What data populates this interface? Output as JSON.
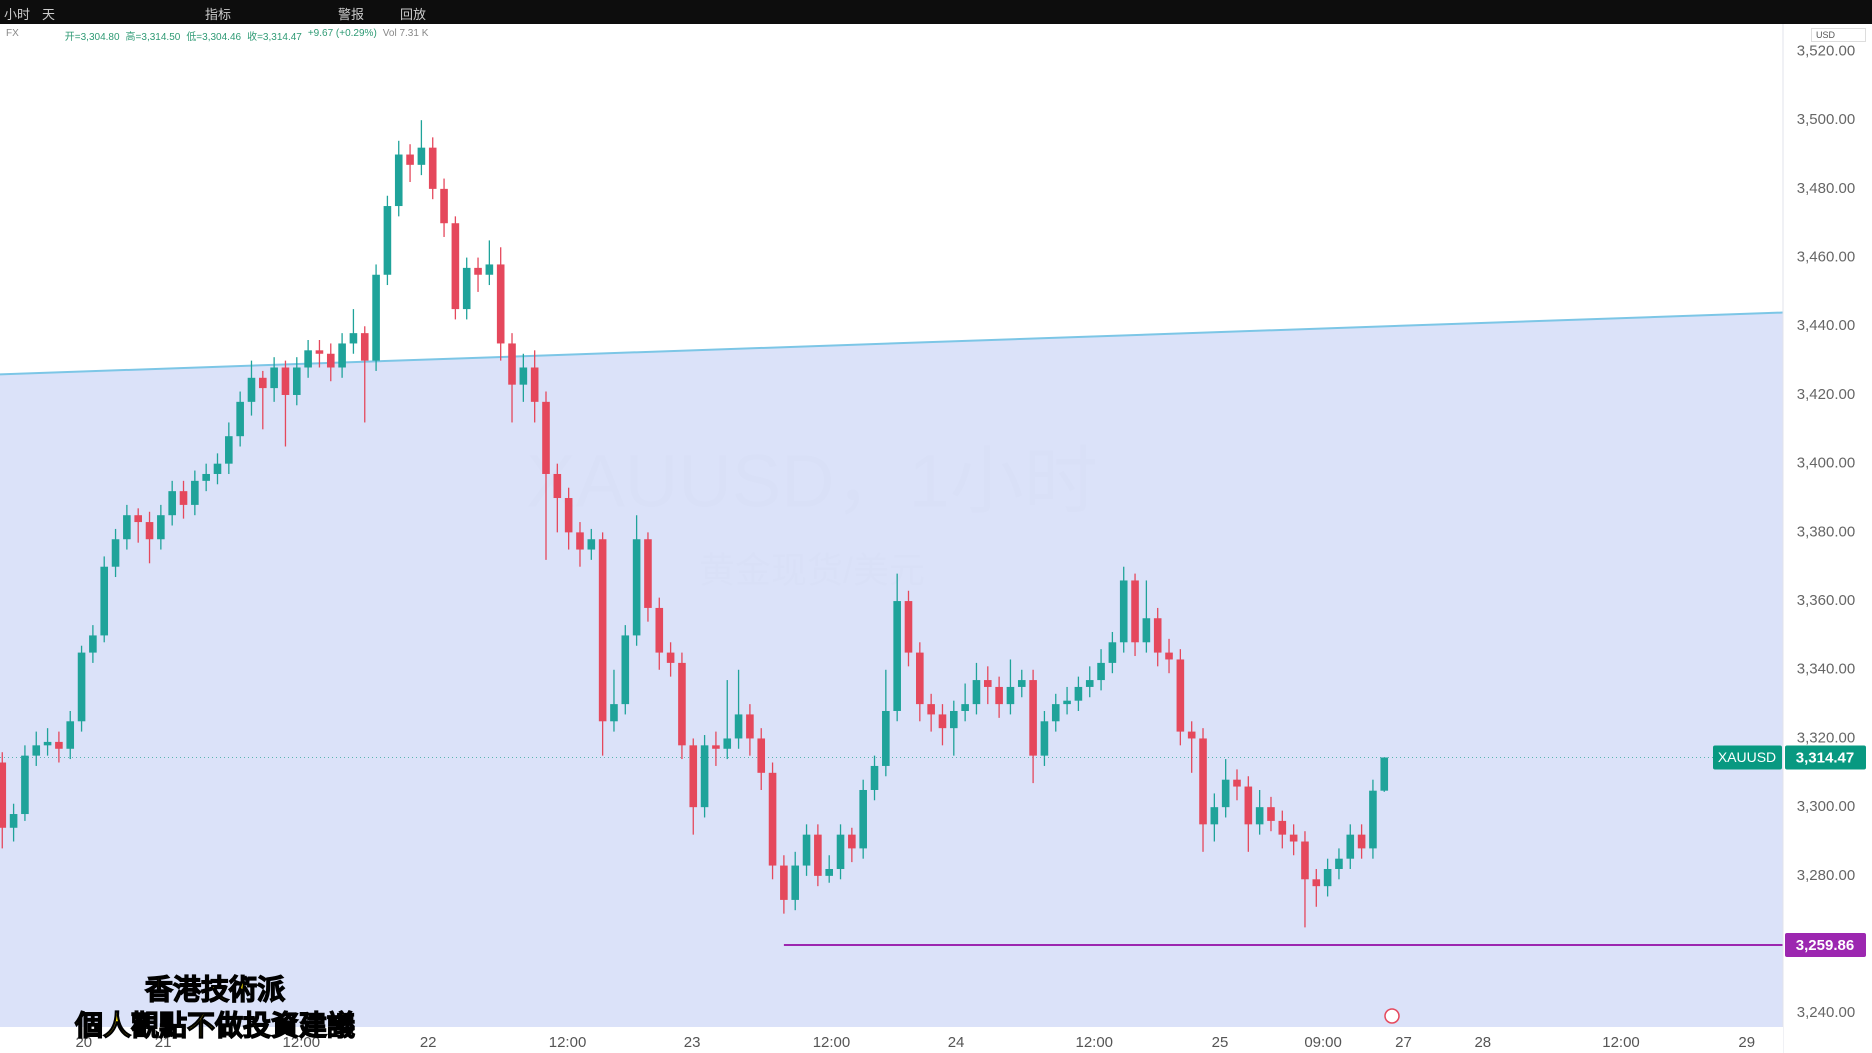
{
  "toolbar": {
    "items": [
      "小时",
      "天",
      "指标",
      "警报",
      "回放"
    ]
  },
  "legend": {
    "symbol": "FX",
    "open": "开=3,304.80",
    "high": "高=3,314.50",
    "low": "低=3,304.46",
    "close": "收=3,314.47",
    "change": "+9.67 (+0.29%)",
    "volume": "Vol 7.31 K"
  },
  "currency": "USD",
  "overlay": {
    "line1": "香港技術派",
    "line2": "個人觀點不做投資建議"
  },
  "chart_data": {
    "type": "candlestick",
    "title": "XAUUSD，1小时",
    "subtitle": "黄金现货/美元",
    "up_color": "#1fa39a",
    "down_color": "#e5485c",
    "x": [
      0,
      1,
      2,
      3,
      4,
      5,
      6,
      7,
      8,
      9,
      10,
      11,
      12,
      13,
      14,
      15,
      16,
      17,
      18,
      19,
      20,
      21,
      22,
      23,
      24,
      25,
      26,
      27,
      28,
      29,
      30,
      31,
      32,
      33,
      34,
      35,
      36,
      37,
      38,
      39,
      40,
      41,
      42,
      43,
      44,
      45,
      46,
      47,
      48,
      49,
      50,
      51,
      52,
      53,
      54,
      55,
      56,
      57,
      58,
      59,
      60,
      61,
      62,
      63,
      64,
      65,
      66,
      67,
      68,
      69,
      70,
      71,
      72,
      73,
      74,
      75,
      76,
      77,
      78,
      79,
      80,
      81,
      82,
      83,
      84,
      85,
      86,
      87,
      88,
      89,
      90,
      91,
      92,
      93,
      94,
      95,
      96,
      97,
      98,
      99,
      100,
      101,
      102,
      103,
      104,
      105,
      106,
      107,
      108,
      109,
      110,
      111,
      112,
      113,
      114,
      115,
      116,
      117,
      118,
      119,
      120,
      121,
      122
    ],
    "open": [
      3313,
      3294,
      3298,
      3315,
      3318,
      3319,
      3317,
      3325,
      3345,
      3350,
      3370,
      3378,
      3385,
      3383,
      3378,
      3385,
      3392,
      3388,
      3395,
      3397,
      3400,
      3408,
      3418,
      3425,
      3422,
      3428,
      3420,
      3428,
      3433,
      3432,
      3428,
      3435,
      3438,
      3430,
      3455,
      3475,
      3490,
      3487,
      3492,
      3480,
      3470,
      3445,
      3457,
      3455,
      3458,
      3435,
      3423,
      3428,
      3418,
      3397,
      3390,
      3380,
      3375,
      3378,
      3325,
      3330,
      3350,
      3378,
      3358,
      3345,
      3342,
      3318,
      3300,
      3318,
      3317,
      3320,
      3327,
      3320,
      3310,
      3283,
      3273,
      3283,
      3292,
      3280,
      3282,
      3292,
      3288,
      3305,
      3312,
      3328,
      3360,
      3345,
      3330,
      3327,
      3323,
      3328,
      3330,
      3337,
      3335,
      3330,
      3335,
      3337,
      3315,
      3325,
      3330,
      3331,
      3335,
      3337,
      3342,
      3348,
      3366,
      3348,
      3355,
      3345,
      3343,
      3322,
      3320,
      3295,
      3300,
      3308,
      3306,
      3295,
      3300,
      3296,
      3292,
      3290,
      3279,
      3277,
      3282,
      3285,
      3292,
      3288,
      3304.8
    ],
    "high": [
      3316,
      3301,
      3318,
      3322,
      3323,
      3322,
      3328,
      3347,
      3353,
      3373,
      3381,
      3388,
      3387,
      3386,
      3388,
      3395,
      3395,
      3398,
      3400,
      3403,
      3412,
      3421,
      3430,
      3427,
      3431,
      3430,
      3431,
      3436,
      3436,
      3435,
      3438,
      3445,
      3440,
      3458,
      3478,
      3494,
      3493,
      3500,
      3495,
      3483,
      3472,
      3460,
      3460,
      3465,
      3463,
      3438,
      3432,
      3433,
      3421,
      3400,
      3393,
      3383,
      3381,
      3380,
      3340,
      3353,
      3385,
      3380,
      3361,
      3348,
      3345,
      3320,
      3321,
      3322,
      3337,
      3340,
      3330,
      3323,
      3313,
      3286,
      3287,
      3295,
      3295,
      3286,
      3295,
      3294,
      3308,
      3315,
      3340,
      3368,
      3363,
      3348,
      3333,
      3330,
      3331,
      3336,
      3342,
      3341,
      3338,
      3343,
      3340,
      3340,
      3328,
      3333,
      3335,
      3338,
      3341,
      3346,
      3351,
      3370,
      3368,
      3366,
      3358,
      3349,
      3346,
      3325,
      3323,
      3304,
      3314,
      3311,
      3309,
      3305,
      3303,
      3299,
      3295,
      3293,
      3282,
      3285,
      3288,
      3295,
      3295,
      3308,
      3314.5
    ],
    "low": [
      3288,
      3290,
      3296,
      3312,
      3315,
      3313,
      3314,
      3322,
      3342,
      3348,
      3367,
      3375,
      3377,
      3371,
      3375,
      3382,
      3384,
      3385,
      3392,
      3394,
      3397,
      3405,
      3414,
      3410,
      3418,
      3405,
      3417,
      3425,
      3428,
      3424,
      3425,
      3432,
      3412,
      3427,
      3452,
      3472,
      3482,
      3484,
      3477,
      3466,
      3442,
      3442,
      3450,
      3452,
      3430,
      3412,
      3418,
      3412,
      3372,
      3380,
      3375,
      3370,
      3372,
      3315,
      3322,
      3327,
      3347,
      3354,
      3340,
      3338,
      3314,
      3292,
      3297,
      3312,
      3314,
      3317,
      3315,
      3305,
      3279,
      3269,
      3270,
      3280,
      3277,
      3278,
      3279,
      3284,
      3285,
      3302,
      3309,
      3325,
      3341,
      3325,
      3322,
      3318,
      3315,
      3325,
      3327,
      3330,
      3326,
      3327,
      3332,
      3307,
      3312,
      3322,
      3327,
      3328,
      3332,
      3334,
      3339,
      3345,
      3344,
      3345,
      3341,
      3339,
      3318,
      3310,
      3287,
      3290,
      3297,
      3302,
      3287,
      3292,
      3293,
      3288,
      3286,
      3265,
      3271,
      3274,
      3279,
      3282,
      3285,
      3285,
      3304.46
    ],
    "close": [
      3294,
      3298,
      3315,
      3318,
      3319,
      3317,
      3325,
      3345,
      3350,
      3370,
      3378,
      3385,
      3383,
      3378,
      3385,
      3392,
      3388,
      3395,
      3397,
      3400,
      3408,
      3418,
      3425,
      3422,
      3428,
      3420,
      3428,
      3433,
      3432,
      3428,
      3435,
      3438,
      3430,
      3455,
      3475,
      3490,
      3487,
      3492,
      3480,
      3470,
      3445,
      3457,
      3455,
      3458,
      3435,
      3423,
      3428,
      3418,
      3397,
      3390,
      3380,
      3375,
      3378,
      3325,
      3330,
      3350,
      3378,
      3358,
      3345,
      3342,
      3318,
      3300,
      3318,
      3317,
      3320,
      3327,
      3320,
      3310,
      3283,
      3273,
      3283,
      3292,
      3280,
      3282,
      3292,
      3288,
      3305,
      3312,
      3328,
      3360,
      3345,
      3330,
      3327,
      3323,
      3328,
      3330,
      3337,
      3335,
      3330,
      3335,
      3337,
      3315,
      3325,
      3330,
      3331,
      3335,
      3337,
      3342,
      3348,
      3366,
      3348,
      3355,
      3345,
      3343,
      3322,
      3320,
      3295,
      3300,
      3308,
      3306,
      3295,
      3300,
      3296,
      3292,
      3290,
      3279,
      3277,
      3282,
      3285,
      3292,
      3288,
      3304.8,
      3314.47
    ],
    "xlim": [
      -0.2,
      157.2
    ],
    "xticks": [
      {
        "value": 7.2,
        "label": "20"
      },
      {
        "value": 14.2,
        "label": "21"
      },
      {
        "value": 26.4,
        "label": "12:00"
      },
      {
        "value": 37.6,
        "label": "22"
      },
      {
        "value": 49.9,
        "label": "12:00"
      },
      {
        "value": 60.9,
        "label": "23"
      },
      {
        "value": 73.2,
        "label": "12:00"
      },
      {
        "value": 84.2,
        "label": "24"
      },
      {
        "value": 96.4,
        "label": "12:00"
      },
      {
        "value": 107.5,
        "label": "25"
      },
      {
        "value": 116.6,
        "label": "09:00"
      },
      {
        "value": 123.7,
        "label": "27"
      },
      {
        "value": 130.7,
        "label": "28"
      },
      {
        "value": 142.9,
        "label": "12:00"
      },
      {
        "value": 154,
        "label": "29"
      }
    ],
    "ylim": [
      3236,
      3528
    ],
    "yticks": [
      {
        "value": 3240,
        "label": "3,240.00"
      },
      {
        "value": 3260,
        "label": "3,260.00"
      },
      {
        "value": 3280,
        "label": "3,280.00"
      },
      {
        "value": 3300,
        "label": "3,300.00"
      },
      {
        "value": 3320,
        "label": "3,320.00"
      },
      {
        "value": 3340,
        "label": "3,340.00"
      },
      {
        "value": 3360,
        "label": "3,360.00"
      },
      {
        "value": 3380,
        "label": "3,380.00"
      },
      {
        "value": 3400,
        "label": "3,400.00"
      },
      {
        "value": 3420,
        "label": "3,420.00"
      },
      {
        "value": 3440,
        "label": "3,440.00"
      },
      {
        "value": 3460,
        "label": "3,460.00"
      },
      {
        "value": 3480,
        "label": "3,480.00"
      },
      {
        "value": 3500,
        "label": "3,500.00"
      },
      {
        "value": 3520,
        "label": "3,520.00"
      }
    ],
    "trendline": {
      "x": [
        -0.2,
        157.2
      ],
      "y": [
        3426,
        3444
      ],
      "color": "#7cc6e6",
      "fill": "#d5ddf8"
    },
    "level": {
      "value": 3259.86,
      "label": "3,259.86",
      "x_start": 69,
      "color": "#9c27b0"
    },
    "last_price": {
      "name": "XAUUSD",
      "value": 3314.47,
      "label": "3,314.47",
      "color": "#089981"
    }
  }
}
